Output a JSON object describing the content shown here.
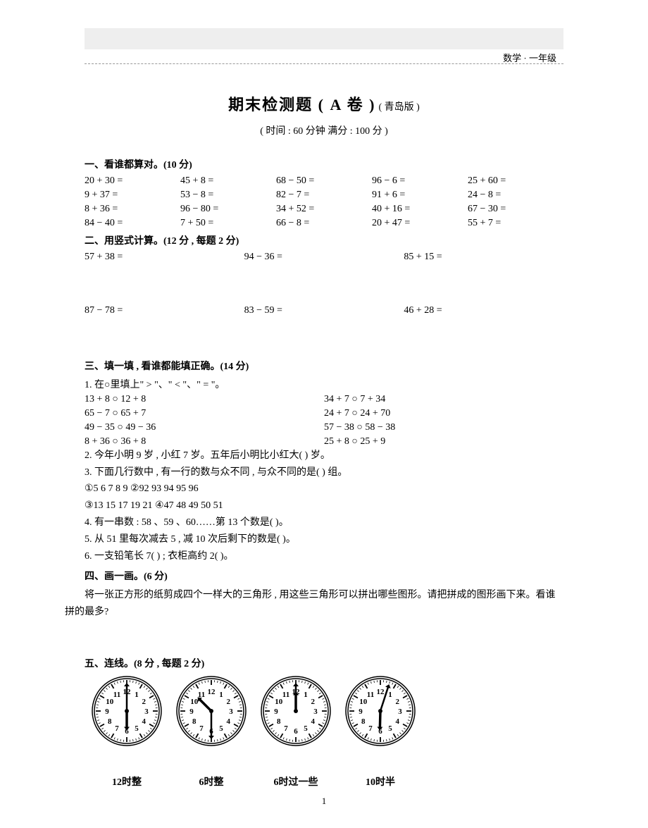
{
  "header": {
    "subject": "数学 · 一年级"
  },
  "title": {
    "main": "期末检测题 ( A 卷 )",
    "edition": "( 青岛版 )",
    "time": "( 时间 : 60 分钟  满分 : 100 分 )"
  },
  "s1": {
    "head": "一、看谁都算对。(10 分)",
    "cells": [
      "20 + 30 =",
      "45 + 8 =",
      "68 − 50 =",
      "96 − 6 =",
      "25 + 60 =",
      "9 + 37 =",
      "53 − 8 =",
      "82 − 7 =",
      "91 + 6 =",
      "24 − 8 =",
      "8 + 36 =",
      "96 − 80 =",
      "34 + 52 =",
      "40 + 16 =",
      "67 − 30 =",
      "84 − 40 =",
      "7 + 50 =",
      "66 − 8 =",
      "20 + 47 =",
      "55 + 7 ="
    ]
  },
  "s2": {
    "head": "二、用竖式计算。(12 分 , 每题 2 分)",
    "cells": [
      "57 + 38 =",
      "94 − 36 =",
      "85 + 15 =",
      "87 − 78 =",
      "83 − 59 =",
      "46 + 28 ="
    ]
  },
  "s3": {
    "head": "三、填一填 , 看谁都能填正确。(14 分)",
    "q1_intro": "1. 在○里填上\" > \"、\" < \"、\" = \"。",
    "q1_cells": [
      "13 + 8 ○ 12 + 8",
      "34 + 7 ○ 7 + 34",
      "65 − 7 ○ 65 + 7",
      "24 + 7 ○ 24 + 70",
      "49 − 35 ○ 49 − 36",
      "57 − 38 ○ 58 − 38",
      "8 + 36 ○ 36 + 8",
      "25 + 8 ○ 25 + 9"
    ],
    "q2": "2. 今年小明 9 岁 , 小红 7 岁。五年后小明比小红大(        ) 岁。",
    "q3": "3. 下面几行数中 , 有一行的数与众不同 , 与众不同的是(        ) 组。",
    "q3a": "①5 6 7 8 9 ②92 93 94 95 96",
    "q3b": "③13 15 17 19 21 ④47 48 49 50 51",
    "q4": "4. 有一串数 : 58 、59 、60……第 13 个数是(        )。",
    "q5": "5. 从 51 里每次减去 5 , 减 10 次后剩下的数是(        )。",
    "q6": "6.  一支铅笔长 7(        ) ; 衣柜高约 2(        )。"
  },
  "s4": {
    "head": "四、画一画。(6 分)",
    "text": "将一张正方形的纸剪成四个一样大的三角形 , 用这些三角形可以拼出哪些图形。请把拼成的图形画下来。看谁拼的最多?"
  },
  "s5": {
    "head": "五、连线。(8 分 , 每题 2 分)",
    "clocks": [
      {
        "hour": 6,
        "minute": 0
      },
      {
        "hour": 10,
        "minute": 30
      },
      {
        "hour": 12,
        "minute": 0
      },
      {
        "hour": 6,
        "minute": 3
      }
    ],
    "labels": [
      "12时整",
      "6时整",
      "6时过一些",
      "10时半"
    ]
  },
  "pagenum": "1",
  "clock_style": {
    "size": 100,
    "face_stroke": "#000",
    "face_fill": "#fff",
    "num_font": 11
  }
}
